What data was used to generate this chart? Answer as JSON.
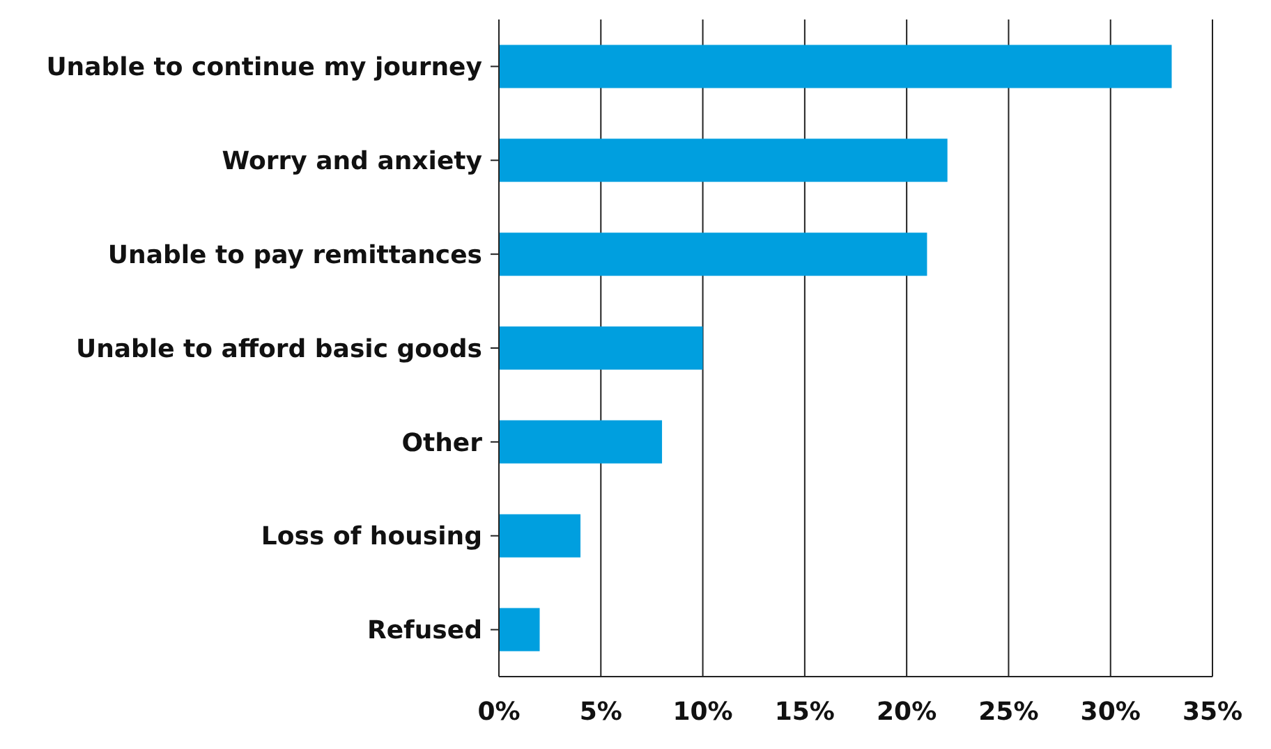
{
  "chart_data": {
    "type": "bar",
    "orientation": "horizontal",
    "categories": [
      "Unable to continue my journey",
      "Worry and anxiety",
      "Unable to pay remittances",
      "Unable to afford basic goods",
      "Other",
      "Loss of housing",
      "Refused"
    ],
    "values": [
      33,
      22,
      21,
      10,
      8,
      4,
      2
    ],
    "color": "#009fdf",
    "xlim": [
      0,
      35
    ],
    "xticks": [
      {
        "value": 0,
        "label": "0%"
      },
      {
        "value": 5,
        "label": "5%"
      },
      {
        "value": 10,
        "label": "10%"
      },
      {
        "value": 15,
        "label": "15%"
      },
      {
        "value": 20,
        "label": "20%"
      },
      {
        "value": 25,
        "label": "25%"
      },
      {
        "value": 30,
        "label": "30%"
      },
      {
        "value": 35,
        "label": "35%"
      }
    ],
    "grid": "x",
    "legend": false
  }
}
